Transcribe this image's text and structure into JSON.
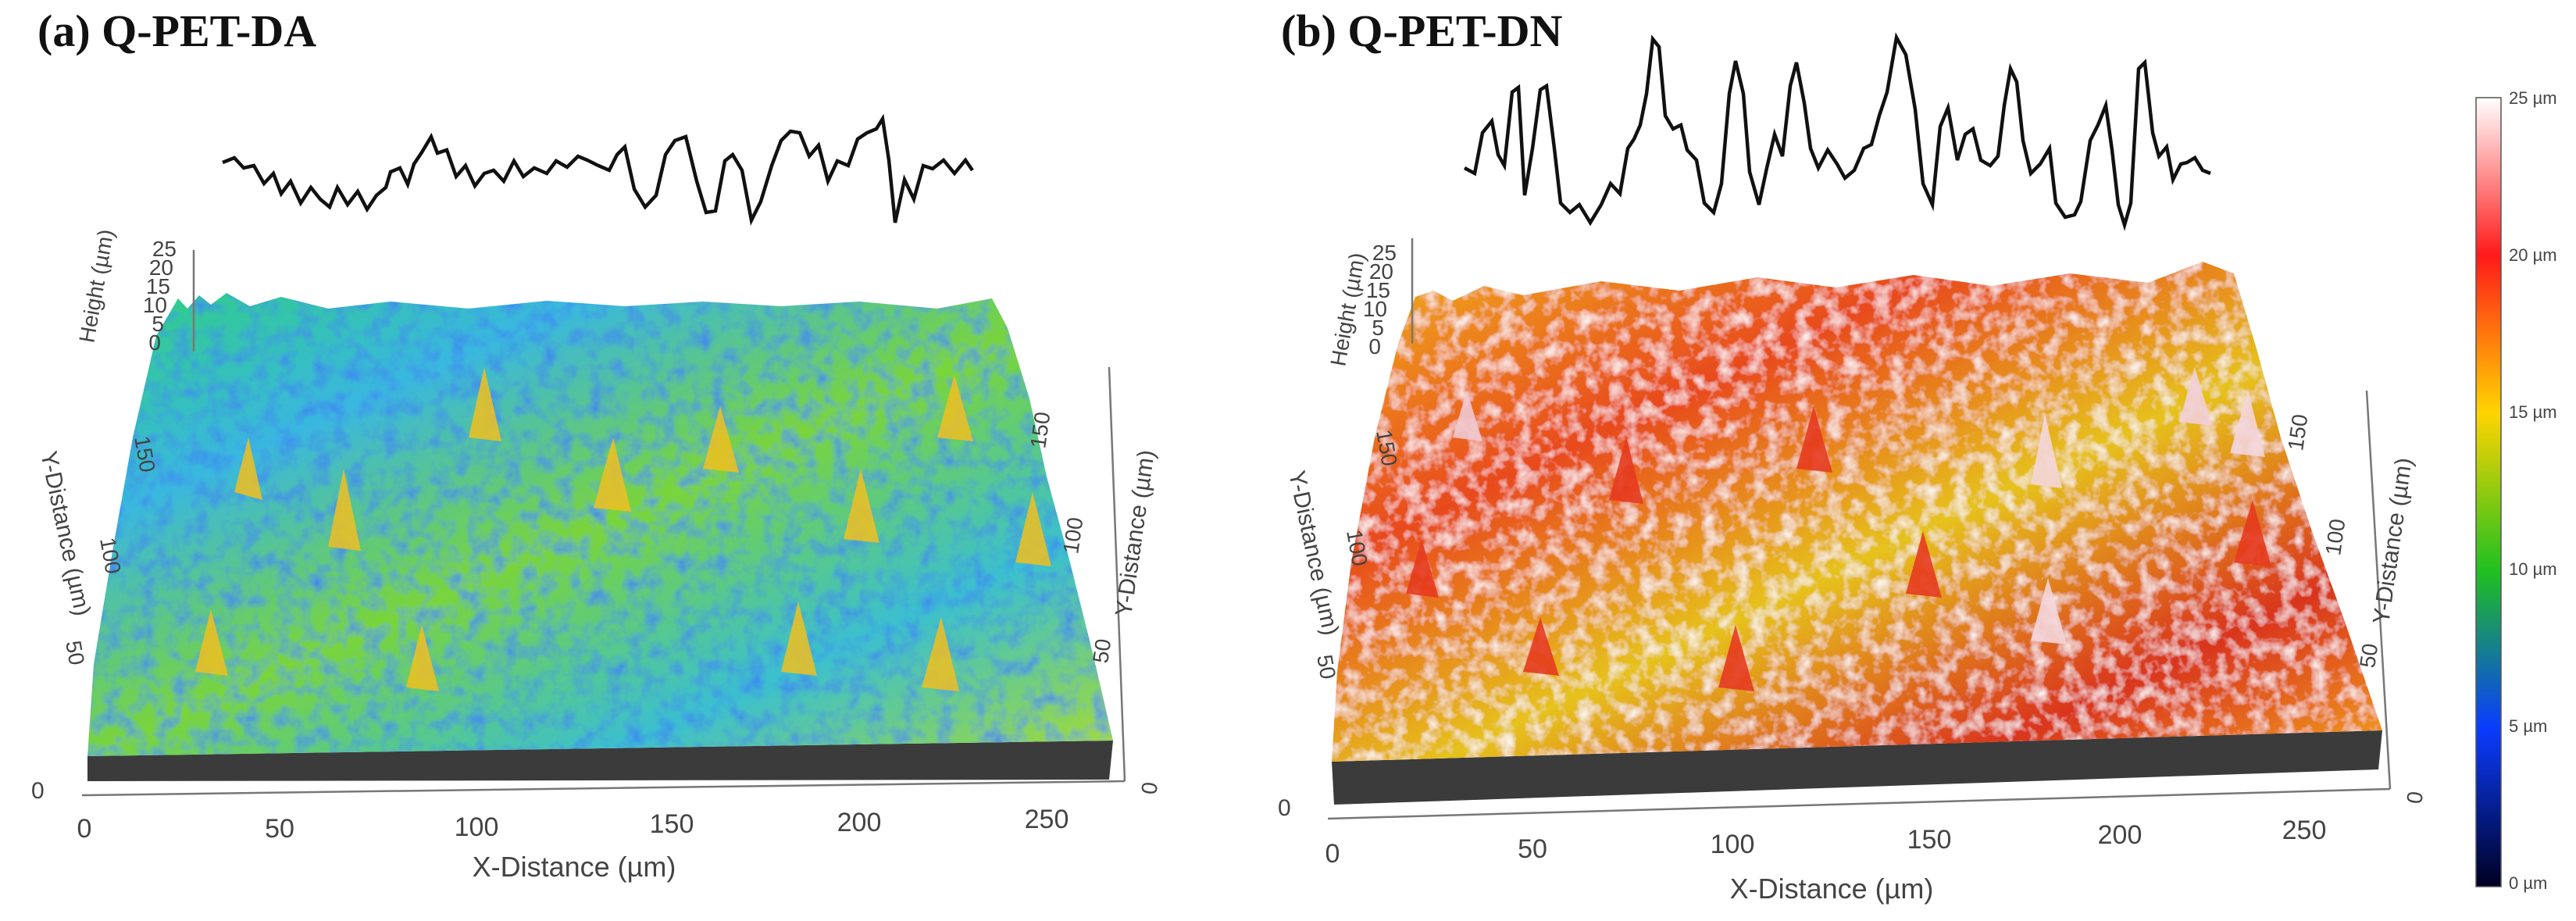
{
  "figure": {
    "panels": [
      {
        "id": "a",
        "title": "(a) Q-PET-DA",
        "axes": {
          "x_label": "X-Distance (µm)",
          "x_ticks": [
            "0",
            "50",
            "100",
            "150",
            "200",
            "250"
          ],
          "y_label_left": "Y-Distance (µm)",
          "y_ticks_left": [
            "50",
            "100",
            "150"
          ],
          "y_label_right": "Y-Distance (µm)",
          "y_ticks_right": [
            "0",
            "50",
            "100",
            "150"
          ],
          "z_label": "Height (µm)",
          "z_ticks": [
            "0",
            "5",
            "10",
            "15",
            "20",
            "25"
          ],
          "origin_label": "0"
        }
      },
      {
        "id": "b",
        "title": "(b) Q-PET-DN",
        "axes": {
          "x_label": "X-Distance (µm)",
          "x_ticks": [
            "0",
            "50",
            "100",
            "150",
            "200",
            "250"
          ],
          "y_label_left": "Y-Distance (µm)",
          "y_ticks_left": [
            "50",
            "100",
            "150"
          ],
          "y_label_right": "Y-Distance (µm)",
          "y_ticks_right": [
            "0",
            "50",
            "100",
            "150"
          ],
          "z_label": "Height (µm)",
          "z_ticks": [
            "0",
            "5",
            "10",
            "15",
            "20",
            "25"
          ],
          "origin_label": "0"
        }
      }
    ],
    "colorbar": {
      "labels": [
        "25 µm",
        "20 µm",
        "15 µm",
        "10 µm",
        "5 µm",
        "0 µm"
      ],
      "colors": [
        "#ffffff",
        "#ff1a1a",
        "#ffd400",
        "#20c020",
        "#0a3cff",
        "#000022"
      ]
    }
  }
}
